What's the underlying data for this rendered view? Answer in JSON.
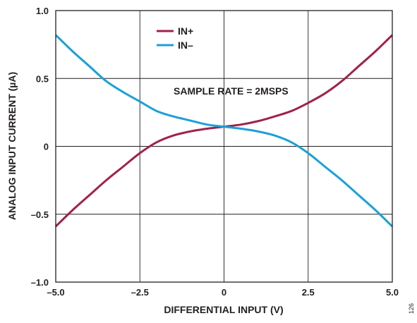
{
  "chart_data": {
    "type": "line",
    "xlabel": "DIFFERENTIAL INPUT (V)",
    "ylabel": "ANALOG INPUT CURRENT (µA)",
    "xlim": [
      -5.0,
      5.0
    ],
    "ylim": [
      -1.0,
      1.0
    ],
    "x_ticks": [
      -5.0,
      -2.5,
      0,
      2.5,
      5.0
    ],
    "x_tick_labels": [
      "–5.0",
      "–2.5",
      "0",
      "2.5",
      "5.0"
    ],
    "y_ticks": [
      1.0,
      0.5,
      0,
      -0.5,
      -1.0
    ],
    "y_tick_labels": [
      "1.0",
      "0.5",
      "0",
      "–0.5",
      "–1.0"
    ],
    "grid": true,
    "legend_position": "top-center",
    "annotation": "SAMPLE RATE = 2MSPS",
    "figure_number": "126",
    "series": [
      {
        "name": "IN+",
        "color": "#a0224a",
        "x": [
          -5.0,
          -4.5,
          -4.0,
          -3.5,
          -3.0,
          -2.5,
          -2.0,
          -1.5,
          -1.0,
          -0.5,
          0,
          0.5,
          1.0,
          1.5,
          2.0,
          2.5,
          3.0,
          3.5,
          4.0,
          4.5,
          5.0
        ],
        "y": [
          -0.59,
          -0.47,
          -0.36,
          -0.25,
          -0.15,
          -0.05,
          0.03,
          0.08,
          0.11,
          0.13,
          0.145,
          0.16,
          0.185,
          0.22,
          0.26,
          0.32,
          0.39,
          0.48,
          0.59,
          0.7,
          0.82
        ]
      },
      {
        "name": "IN–",
        "color": "#1ba0d8",
        "x": [
          -5.0,
          -4.5,
          -4.0,
          -3.5,
          -3.0,
          -2.5,
          -2.0,
          -1.5,
          -1.0,
          -0.5,
          0,
          0.5,
          1.0,
          1.5,
          2.0,
          2.5,
          3.0,
          3.5,
          4.0,
          4.5,
          5.0
        ],
        "y": [
          0.82,
          0.7,
          0.59,
          0.48,
          0.4,
          0.33,
          0.26,
          0.22,
          0.19,
          0.16,
          0.145,
          0.13,
          0.11,
          0.08,
          0.03,
          -0.05,
          -0.15,
          -0.25,
          -0.36,
          -0.47,
          -0.59
        ]
      }
    ]
  }
}
